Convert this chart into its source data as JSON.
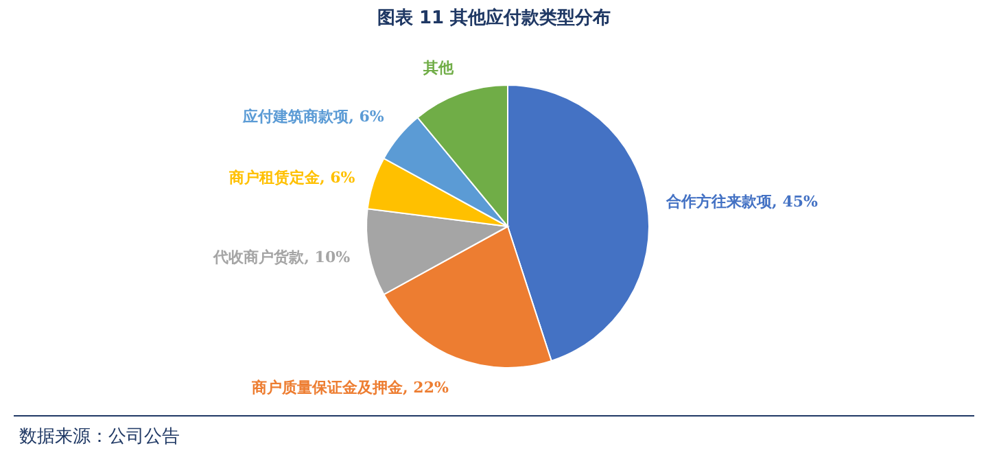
{
  "chart_data": {
    "type": "pie",
    "title": "图表 11  其他应付款类型分布",
    "categories": [
      "合作方往来款项",
      "商户质量保证金及押金",
      "代收商户货款",
      "商户租赁定金",
      "应付建筑商款项",
      "其他"
    ],
    "values": [
      45,
      22,
      10,
      6,
      6,
      11
    ],
    "value_labels": [
      "45%",
      "22%",
      "10%",
      "6%",
      "6%",
      null
    ],
    "colors": [
      "#4472c4",
      "#ed7d31",
      "#a5a5a5",
      "#ffc000",
      "#5b9bd5",
      "#70ad47"
    ],
    "annotations": [
      "数据来源：公司公告"
    ]
  }
}
